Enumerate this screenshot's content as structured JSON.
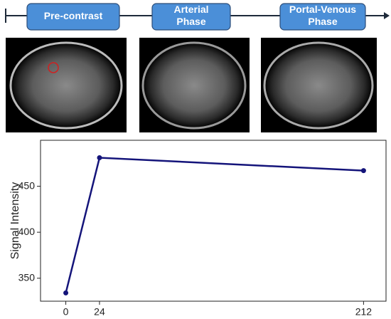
{
  "phases": [
    [
      "Pre-contrast"
    ],
    [
      "Arterial",
      "Phase"
    ],
    [
      "Portal-Venous",
      "Phase"
    ]
  ],
  "chart_data": {
    "type": "line",
    "y_label": "Signal Intensity",
    "x": [
      0,
      24,
      212
    ],
    "series": [
      {
        "color": "#14147a",
        "values": [
          334,
          481,
          467
        ]
      }
    ],
    "xlim": [
      -18,
      228
    ],
    "xticks": [
      0,
      24,
      212
    ],
    "ylim": [
      325,
      500
    ],
    "yticks": [
      350,
      400,
      450
    ]
  }
}
